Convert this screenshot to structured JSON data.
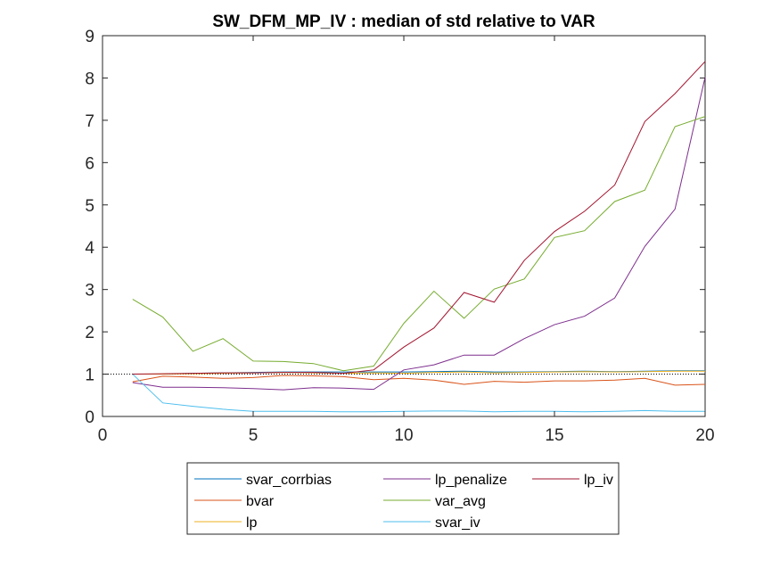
{
  "chart_data": {
    "type": "line",
    "title": "SW_DFM_MP_IV : median of std relative to VAR",
    "xlabel": "",
    "ylabel": "",
    "xlim": [
      0,
      20
    ],
    "ylim": [
      0,
      9
    ],
    "xticks": [
      "0",
      "5",
      "10",
      "15",
      "20"
    ],
    "xtick_values": [
      0,
      5,
      10,
      15,
      20
    ],
    "yticks": [
      "0",
      "1",
      "2",
      "3",
      "4",
      "5",
      "6",
      "7",
      "8",
      "9"
    ],
    "ytick_values": [
      0,
      1,
      2,
      3,
      4,
      5,
      6,
      7,
      8,
      9
    ],
    "grid": false,
    "legend_position": "bottom-center-outside",
    "reference_line": {
      "y": 1,
      "style": "dotted",
      "color": "#000000"
    },
    "x": [
      1,
      2,
      3,
      4,
      5,
      6,
      7,
      8,
      9,
      10,
      11,
      12,
      13,
      14,
      15,
      16,
      17,
      18,
      19,
      20
    ],
    "series": [
      {
        "name": "svar_corrbias",
        "color": "#0072BD",
        "values": [
          1.0,
          1.0,
          1.02,
          1.03,
          1.04,
          1.05,
          1.05,
          1.05,
          1.05,
          1.05,
          1.06,
          1.07,
          1.05,
          1.05,
          1.06,
          1.07,
          1.06,
          1.07,
          1.08,
          1.08
        ]
      },
      {
        "name": "bvar",
        "color": "#D95319",
        "values": [
          0.82,
          0.95,
          0.93,
          0.9,
          0.92,
          0.97,
          0.96,
          0.94,
          0.87,
          0.9,
          0.86,
          0.76,
          0.83,
          0.81,
          0.84,
          0.84,
          0.86,
          0.9,
          0.74,
          0.76
        ]
      },
      {
        "name": "lp",
        "color": "#EDB120",
        "values": [
          1.0,
          1.0,
          1.01,
          1.02,
          1.03,
          1.04,
          1.03,
          1.02,
          1.03,
          1.02,
          1.04,
          1.05,
          1.03,
          1.04,
          1.05,
          1.06,
          1.05,
          1.06,
          1.07,
          1.07
        ]
      },
      {
        "name": "lp_penalize",
        "color": "#7E2F8E",
        "values": [
          0.8,
          0.69,
          0.69,
          0.68,
          0.66,
          0.63,
          0.68,
          0.67,
          0.64,
          1.1,
          1.22,
          1.45,
          1.45,
          1.84,
          2.17,
          2.37,
          2.8,
          4.02,
          4.9,
          8.02
        ]
      },
      {
        "name": "var_avg",
        "color": "#77AC30",
        "values": [
          2.77,
          2.35,
          1.54,
          1.84,
          1.31,
          1.3,
          1.25,
          1.08,
          1.19,
          2.2,
          2.96,
          2.32,
          3.01,
          3.25,
          4.23,
          4.39,
          5.08,
          5.35,
          6.85,
          7.09
        ]
      },
      {
        "name": "svar_iv",
        "color": "#4DBEEE",
        "values": [
          1.0,
          0.32,
          0.24,
          0.17,
          0.12,
          0.12,
          0.12,
          0.11,
          0.11,
          0.12,
          0.13,
          0.13,
          0.11,
          0.12,
          0.12,
          0.11,
          0.12,
          0.14,
          0.12,
          0.12
        ]
      },
      {
        "name": "lp_iv",
        "color": "#A2142F",
        "values": [
          1.0,
          1.01,
          1.02,
          1.03,
          1.03,
          1.04,
          1.04,
          1.02,
          1.1,
          1.64,
          2.09,
          2.93,
          2.7,
          3.69,
          4.37,
          4.85,
          5.47,
          6.97,
          7.63,
          8.39
        ]
      }
    ]
  },
  "legend": {
    "columns": [
      [
        "svar_corrbias",
        "bvar",
        "lp"
      ],
      [
        "lp_penalize",
        "var_avg",
        "svar_iv"
      ],
      [
        "lp_iv"
      ]
    ]
  }
}
